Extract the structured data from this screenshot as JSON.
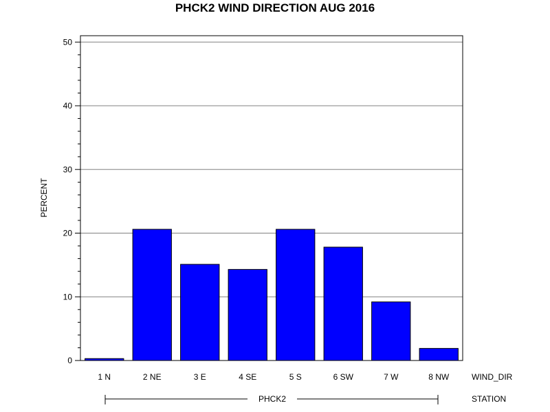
{
  "chart_data": {
    "type": "bar",
    "title": "PHCK2 WIND DIRECTION AUG 2016",
    "ylabel": "PERCENT",
    "xlabel": "WIND_DIR",
    "group_label": "STATION",
    "group_value": "PHCK2",
    "categories": [
      "1 N",
      "2 NE",
      "3 E",
      "4 SE",
      "5 S",
      "6 SW",
      "7 W",
      "8 NW"
    ],
    "values": [
      0.3,
      20.6,
      15.1,
      14.3,
      20.6,
      17.8,
      9.2,
      1.9
    ],
    "ylim": [
      0,
      51
    ],
    "yticks": [
      0,
      10,
      20,
      30,
      40,
      50
    ],
    "grid": true,
    "bar_color": "#0000ff"
  }
}
